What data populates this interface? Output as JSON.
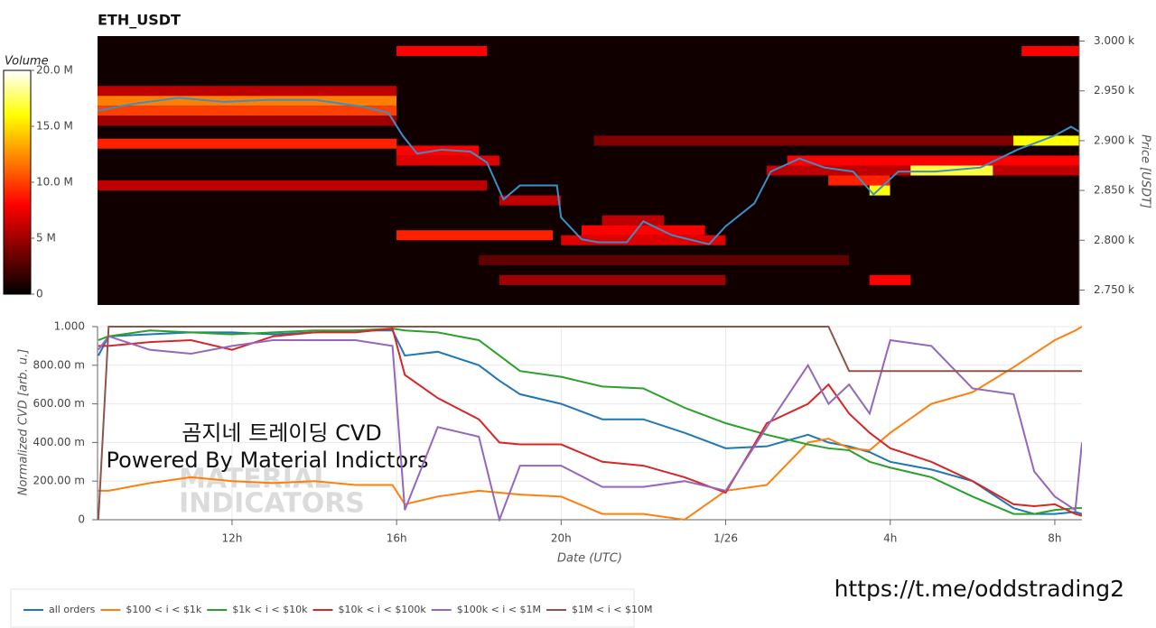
{
  "chart_data": [
    {
      "type": "heatmap",
      "title": "ETH_USDT",
      "ylabel": "Price [USDT]",
      "xlim": [
        8.73,
        32.6
      ],
      "ylim": [
        2735,
        3005
      ],
      "yticks": [
        {
          "value": 2750,
          "label": "2.750 k"
        },
        {
          "value": 2800,
          "label": "2.800 k"
        },
        {
          "value": 2850,
          "label": "2.850 k"
        },
        {
          "value": 2900,
          "label": "2.900 k"
        },
        {
          "value": 2950,
          "label": "2.950 k"
        },
        {
          "value": 3000,
          "label": "3.000 k"
        }
      ],
      "colorbar": {
        "label": "Volume",
        "colormap": "hot",
        "lim": [
          0,
          20
        ],
        "ticks": [
          0,
          {
            "value": 5,
            "label": "5 M"
          },
          {
            "value": 10,
            "label": "10.0 M"
          },
          {
            "value": 15,
            "label": "15.0 M"
          },
          {
            "value": 20,
            "label": "20.0 M"
          }
        ]
      },
      "bands": [
        {
          "price": 2990,
          "start": 16.0,
          "end": 18.2,
          "volume": 8
        },
        {
          "price": 2990,
          "start": 31.2,
          "end": 32.6,
          "volume": 8
        },
        {
          "price": 2950,
          "start": 8.73,
          "end": 16.0,
          "volume": 6
        },
        {
          "price": 2940,
          "start": 8.73,
          "end": 16.0,
          "volume": 12
        },
        {
          "price": 2930,
          "start": 8.73,
          "end": 16.0,
          "volume": 10
        },
        {
          "price": 2920,
          "start": 8.73,
          "end": 16.0,
          "volume": 5
        },
        {
          "price": 2897,
          "start": 8.73,
          "end": 16.0,
          "volume": 9
        },
        {
          "price": 2855,
          "start": 8.73,
          "end": 18.2,
          "volume": 6
        },
        {
          "price": 2890,
          "start": 16.0,
          "end": 18.0,
          "volume": 8
        },
        {
          "price": 2880,
          "start": 16.0,
          "end": 18.5,
          "volume": 7
        },
        {
          "price": 2900,
          "start": 20.8,
          "end": 32.6,
          "volume": 4
        },
        {
          "price": 2840,
          "start": 18.5,
          "end": 20.0,
          "volume": 6
        },
        {
          "price": 2820,
          "start": 21.0,
          "end": 22.5,
          "volume": 6
        },
        {
          "price": 2810,
          "start": 20.5,
          "end": 23.5,
          "volume": 8
        },
        {
          "price": 2805,
          "start": 16.0,
          "end": 19.8,
          "volume": 9
        },
        {
          "price": 2800,
          "start": 20.0,
          "end": 24.0,
          "volume": 7
        },
        {
          "price": 2780,
          "start": 18.0,
          "end": 27.0,
          "volume": 3
        },
        {
          "price": 2760,
          "start": 18.5,
          "end": 24.0,
          "volume": 5
        },
        {
          "price": 2760,
          "start": 27.5,
          "end": 28.5,
          "volume": 8
        },
        {
          "price": 2880,
          "start": 25.5,
          "end": 32.6,
          "volume": 8
        },
        {
          "price": 2870,
          "start": 25.0,
          "end": 32.6,
          "volume": 6
        },
        {
          "price": 2860,
          "start": 26.5,
          "end": 28.0,
          "volume": 9
        },
        {
          "price": 2850,
          "start": 27.5,
          "end": 28.0,
          "volume": 16
        },
        {
          "price": 2870,
          "start": 28.5,
          "end": 30.5,
          "volume": 17
        },
        {
          "price": 2900,
          "start": 31.0,
          "end": 32.6,
          "volume": 16
        }
      ],
      "price_line": {
        "color": "#3a8fc8",
        "x": [
          8.73,
          9.6,
          10.7,
          11.8,
          12.9,
          14.0,
          15.2,
          15.8,
          16.15,
          16.5,
          17.1,
          17.8,
          18.2,
          18.6,
          19.0,
          19.9,
          20.0,
          20.5,
          20.9,
          21.6,
          22.0,
          22.7,
          23.6,
          24.0,
          24.7,
          25.1,
          25.8,
          26.4,
          27.1,
          27.6,
          28.2,
          29.1,
          30.2,
          31.1,
          32.0,
          32.4,
          32.6
        ],
        "values": [
          2930,
          2937,
          2943,
          2939,
          2941,
          2941,
          2934,
          2928,
          2905,
          2887,
          2891,
          2889,
          2878,
          2841,
          2855,
          2855,
          2823,
          2801,
          2798,
          2798,
          2819,
          2805,
          2796,
          2814,
          2837,
          2869,
          2882,
          2873,
          2869,
          2846,
          2869,
          2869,
          2873,
          2891,
          2905,
          2914,
          2909
        ]
      }
    },
    {
      "type": "line",
      "xlabel": "Date (UTC)",
      "ylabel": "Normalized CVD [arb. u.]",
      "xlim": [
        8.73,
        32.66
      ],
      "ylim": [
        0,
        1
      ],
      "grid": true,
      "legend": "below",
      "xticks": [
        {
          "value": 12,
          "label": "12h"
        },
        {
          "value": 16,
          "label": "16h"
        },
        {
          "value": 20,
          "label": "20h"
        },
        {
          "value": 24,
          "label": "1/26"
        },
        {
          "value": 28,
          "label": "4h"
        },
        {
          "value": 32,
          "label": "8h"
        }
      ],
      "yticks": [
        0,
        {
          "value": 0.2,
          "label": "200.00 m"
        },
        {
          "value": 0.4,
          "label": "400.00 m"
        },
        {
          "value": 0.6,
          "label": "600.00 m"
        },
        {
          "value": 0.8,
          "label": "800.00 m"
        },
        {
          "value": 1,
          "label": "1.000"
        }
      ],
      "x": [
        8.75,
        9,
        10,
        11,
        12,
        13,
        14,
        15,
        15.9,
        16.2,
        17,
        18,
        18.5,
        19,
        20,
        21,
        22,
        23,
        24,
        25,
        26,
        26.5,
        27,
        27.5,
        28,
        29,
        30,
        31,
        31.5,
        32,
        32.5,
        32.66
      ],
      "series": [
        {
          "name": "all orders",
          "color": "#1f77b4",
          "values": [
            0.85,
            0.95,
            0.96,
            0.97,
            0.97,
            0.96,
            0.97,
            0.98,
            0.98,
            0.85,
            0.87,
            0.8,
            0.72,
            0.65,
            0.6,
            0.52,
            0.52,
            0.45,
            0.37,
            0.38,
            0.44,
            0.4,
            0.38,
            0.35,
            0.3,
            0.26,
            0.2,
            0.06,
            0.03,
            0.03,
            0.04,
            0.03
          ]
        },
        {
          "name": "$100 < i < $1k",
          "color": "#ff7f0e",
          "values": [
            0.15,
            0.15,
            0.19,
            0.22,
            0.2,
            0.19,
            0.2,
            0.18,
            0.18,
            0.08,
            0.12,
            0.15,
            0.14,
            0.13,
            0.12,
            0.03,
            0.03,
            0.0,
            0.15,
            0.18,
            0.4,
            0.42,
            0.37,
            0.36,
            0.45,
            0.6,
            0.66,
            0.79,
            0.86,
            0.93,
            0.98,
            1.0
          ]
        },
        {
          "name": "$1k < i < $10k",
          "color": "#2ca02c",
          "values": [
            0.93,
            0.95,
            0.98,
            0.97,
            0.96,
            0.97,
            0.98,
            0.98,
            0.99,
            0.98,
            0.97,
            0.93,
            0.85,
            0.77,
            0.74,
            0.69,
            0.68,
            0.58,
            0.5,
            0.44,
            0.39,
            0.37,
            0.36,
            0.3,
            0.27,
            0.22,
            0.12,
            0.03,
            0.03,
            0.05,
            0.06,
            0.06
          ]
        },
        {
          "name": "$10k < i < $100k",
          "color": "#d62728",
          "values": [
            0.9,
            0.9,
            0.92,
            0.93,
            0.88,
            0.95,
            0.97,
            0.97,
            0.99,
            0.75,
            0.63,
            0.52,
            0.4,
            0.39,
            0.39,
            0.3,
            0.28,
            0.22,
            0.14,
            0.5,
            0.6,
            0.7,
            0.55,
            0.45,
            0.37,
            0.3,
            0.2,
            0.08,
            0.07,
            0.08,
            0.03,
            0.02
          ]
        },
        {
          "name": "$100k < i < $1M",
          "color": "#9467bd",
          "values": [
            0.88,
            0.95,
            0.88,
            0.86,
            0.9,
            0.93,
            0.93,
            0.93,
            0.9,
            0.05,
            0.48,
            0.43,
            0.0,
            0.28,
            0.28,
            0.17,
            0.17,
            0.2,
            0.15,
            0.48,
            0.8,
            0.6,
            0.7,
            0.55,
            0.93,
            0.9,
            0.68,
            0.65,
            0.25,
            0.12,
            0.05,
            0.4
          ]
        },
        {
          "name": "$1M < i < $10M",
          "color": "#8c564b",
          "values": [
            0.0,
            1.0,
            1.0,
            1.0,
            1.0,
            1.0,
            1.0,
            1.0,
            1.0,
            1.0,
            1.0,
            1.0,
            1.0,
            1.0,
            1.0,
            1.0,
            1.0,
            1.0,
            1.0,
            1.0,
            1.0,
            1.0,
            0.77,
            0.77,
            0.77,
            0.77,
            0.77,
            0.77,
            0.77,
            0.77,
            0.77,
            0.77
          ]
        }
      ]
    }
  ],
  "watermark": [
    "곰지네 트레이딩 CVD",
    "Powered By Material Indictors"
  ],
  "logo_text": [
    "MATERIAL",
    "INDICATORS"
  ],
  "link": "https://t.me/oddstrading2"
}
